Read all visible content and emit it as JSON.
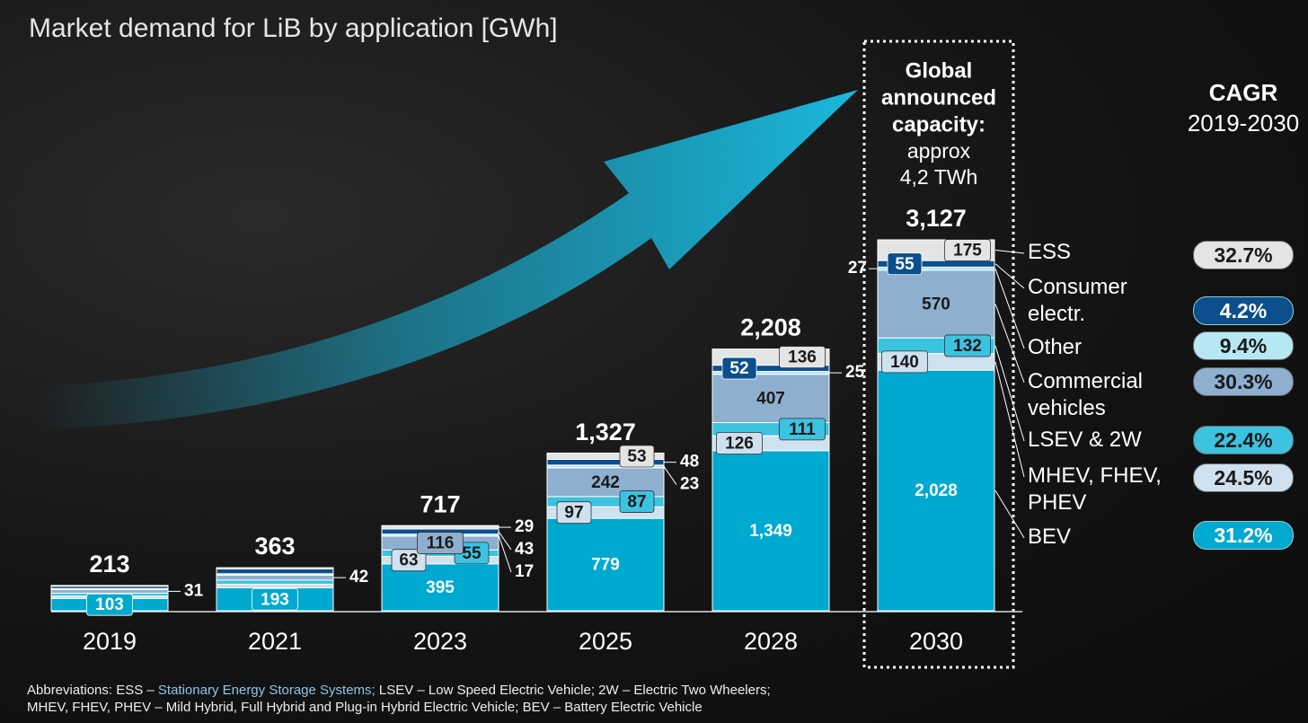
{
  "chart_data": {
    "type": "stacked-bar",
    "title": "Market demand for LiB by application [GWh]",
    "categories": [
      "2019",
      "2021",
      "2023",
      "2025",
      "2028",
      "2030"
    ],
    "series": [
      {
        "name": "BEV",
        "color": "#00a9cf",
        "cagr": "31.2%",
        "values": [
          103,
          193,
          395,
          779,
          1349,
          2028
        ],
        "value_labels": [
          "103",
          "193",
          "395",
          "779",
          "1,349",
          "2,028"
        ]
      },
      {
        "name": "MHEV, FHEV, PHEV",
        "color": "#cfe0ee",
        "cagr": "24.5%",
        "values": [
          20,
          30,
          63,
          97,
          126,
          140
        ],
        "value_labels": [
          null,
          null,
          "63",
          "97",
          "126",
          "140"
        ]
      },
      {
        "name": "LSEV & 2W",
        "color": "#3cc3e0",
        "cagr": "22.4%",
        "values": [
          25,
          35,
          55,
          87,
          111,
          132
        ],
        "value_labels": [
          null,
          null,
          "55",
          "87",
          "111",
          "132"
        ]
      },
      {
        "name": "Commercial vehicles",
        "color": "#8eafcf",
        "cagr": "30.3%",
        "values": [
          31,
          42,
          116,
          242,
          407,
          570
        ],
        "value_labels": [
          "31",
          "42",
          "116",
          "242",
          "407",
          "570"
        ]
      },
      {
        "name": "Other",
        "color": "#b6e8f4",
        "cagr": "9.4%",
        "values": [
          8,
          12,
          17,
          23,
          25,
          27
        ],
        "value_labels": [
          null,
          null,
          "17",
          "23",
          "25",
          "27"
        ]
      },
      {
        "name": "Consumer electr.",
        "color": "#0b4f8c",
        "cagr": "4.2%",
        "values": [
          20,
          40,
          43,
          48,
          52,
          55
        ],
        "value_labels": [
          null,
          null,
          "43",
          "48",
          "52",
          "55"
        ]
      },
      {
        "name": "ESS",
        "color": "#e4e4e4",
        "cagr": "32.7%",
        "values": [
          6,
          11,
          29,
          53,
          136,
          175
        ],
        "value_labels": [
          null,
          null,
          "29",
          "53",
          "136",
          "175"
        ]
      }
    ],
    "totals": [
      213,
      363,
      717,
      1327,
      2208,
      3127
    ],
    "totals_labels": [
      "213",
      "363",
      "717",
      "1,327",
      "2,208",
      "3,127"
    ],
    "cagr_title": "CAGR",
    "cagr_subtitle": "2019-2030",
    "annotation_heading": [
      "Global",
      "announced",
      "capacity:"
    ],
    "annotation_lines": [
      "approx",
      "4,2 TWh"
    ],
    "footnote": [
      "Abbreviations: ESS – ",
      "Stationary Energy Storage Systems;",
      " LSEV – Low Speed Electric Vehicle; 2W – Electric Two Wheelers;",
      "MHEV, FHEV, PHEV – Mild Hybrid, Full Hybrid and Plug-in Hybrid Electric Vehicle; BEV – Battery Electric Vehicle"
    ]
  }
}
